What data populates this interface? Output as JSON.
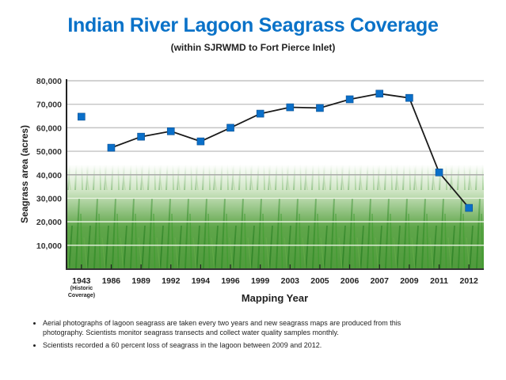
{
  "chart_data": {
    "type": "line",
    "title": "Indian River Lagoon Seagrass Coverage",
    "subtitle": "(within SJRWMD to Fort Pierce Inlet)",
    "xlabel": "Mapping Year",
    "ylabel": "Seagrass area (acres)",
    "ylim": [
      0,
      80000
    ],
    "yticks": [
      10000,
      20000,
      30000,
      40000,
      50000,
      60000,
      70000,
      80000
    ],
    "ytick_labels": [
      "10,000",
      "20,000",
      "30,000",
      "40,000",
      "50,000",
      "60,000",
      "70,000",
      "80,000"
    ],
    "grid": true,
    "categories": [
      "1943",
      "1986",
      "1989",
      "1992",
      "1994",
      "1996",
      "1999",
      "2003",
      "2005",
      "2006",
      "2007",
      "2009",
      "2011",
      "2012"
    ],
    "category_notes": {
      "1943": "(Historic Coverage)"
    },
    "category_note_lines": [
      "(Historic",
      "Coverage)"
    ],
    "series": [
      {
        "name": "Seagrass area",
        "color": "#0a6fc9",
        "line_color": "#1a1a1a",
        "values": [
          64700,
          51500,
          56200,
          58500,
          54200,
          60000,
          66000,
          68700,
          68400,
          72100,
          74500,
          72700,
          41000,
          25900
        ],
        "connected_from_index": 1
      }
    ]
  },
  "notes": [
    "Aerial photographs of lagoon seagrass are taken every two years and new seagrass maps are produced from this photography. Scientists monitor seagrass transects and collect water quality samples monthly.",
    "Scientists recorded a 60 percent loss of seagrass in the lagoon between 2009 and 2012."
  ],
  "colors": {
    "title": "#0a72c8",
    "marker": "#0a6fc9",
    "grass_dark": "#2f8a2a",
    "grass_light": "#8cc46a"
  }
}
